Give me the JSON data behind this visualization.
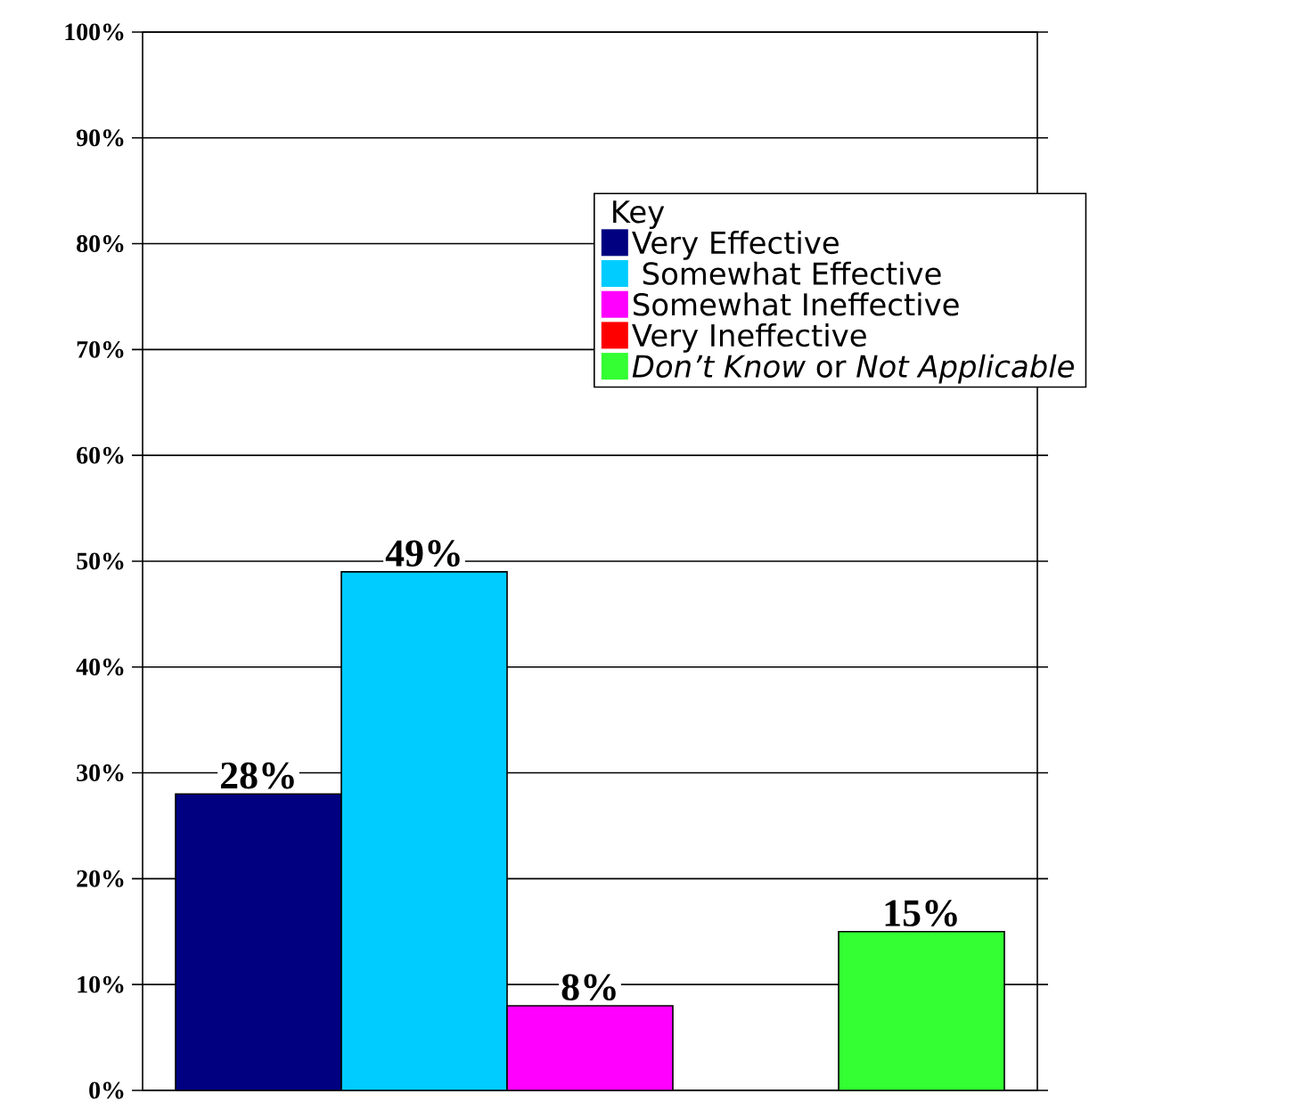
{
  "chart_data": {
    "type": "bar",
    "legend_title": "Key",
    "categories": [
      null
    ],
    "series": [
      {
        "name": "Very Effective",
        "color": "#000080",
        "values": [
          28
        ],
        "value_labels": [
          "28%"
        ]
      },
      {
        "name": " Somewhat Effective",
        "color": "#00ccff",
        "values": [
          49
        ],
        "value_labels": [
          "49%"
        ]
      },
      {
        "name": "Somewhat Ineffective",
        "color": "#ff00ff",
        "values": [
          8
        ],
        "value_labels": [
          "8%"
        ]
      },
      {
        "name": "Very Ineffective",
        "color": "#ff0000",
        "values": [
          0
        ],
        "value_labels": [
          null
        ]
      },
      {
        "name": "*Don’t Know* or *Not Applicable*",
        "color": "#33ff33",
        "values": [
          15
        ],
        "value_labels": [
          "15%"
        ]
      }
    ],
    "ylim": [
      0,
      100
    ],
    "yticks": [
      {
        "value": 0,
        "label": "0%"
      },
      {
        "value": 10,
        "label": "10%"
      },
      {
        "value": 20,
        "label": "20%"
      },
      {
        "value": 30,
        "label": "30%"
      },
      {
        "value": 40,
        "label": "40%"
      },
      {
        "value": 50,
        "label": "50%"
      },
      {
        "value": 60,
        "label": "60%"
      },
      {
        "value": 70,
        "label": "70%"
      },
      {
        "value": 80,
        "label": "80%"
      },
      {
        "value": 90,
        "label": "90%"
      },
      {
        "value": 100,
        "label": "100%"
      }
    ],
    "grid": "y",
    "legend": "top right"
  }
}
